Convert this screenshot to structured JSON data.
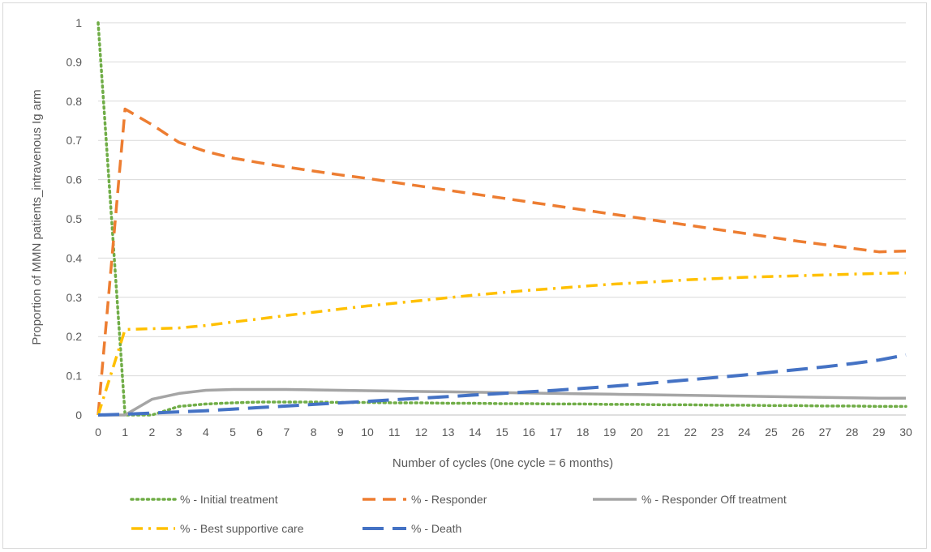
{
  "chart_data": {
    "type": "line",
    "title": "",
    "xlabel": "Number of cycles (0ne cycle = 6 months)",
    "ylabel": "Proportion of MMN patients_intravenous Ig arm",
    "x": [
      0,
      1,
      2,
      3,
      4,
      5,
      6,
      7,
      8,
      9,
      10,
      11,
      12,
      13,
      14,
      15,
      16,
      17,
      18,
      19,
      20,
      21,
      22,
      23,
      24,
      25,
      26,
      27,
      28,
      29,
      30
    ],
    "xlim": [
      0,
      30
    ],
    "ylim": [
      0,
      1
    ],
    "yticks": [
      "0",
      "0.1",
      "0.2",
      "0.3",
      "0.4",
      "0.5",
      "0.6",
      "0.7",
      "0.8",
      "0.9",
      "1"
    ],
    "xticks": [
      "0",
      "1",
      "2",
      "3",
      "4",
      "5",
      "6",
      "7",
      "8",
      "9",
      "10",
      "11",
      "12",
      "13",
      "14",
      "15",
      "16",
      "17",
      "18",
      "19",
      "20",
      "21",
      "22",
      "23",
      "24",
      "25",
      "26",
      "27",
      "28",
      "29",
      "30"
    ],
    "grid": true,
    "legend_position": "bottom",
    "series": [
      {
        "name": "% - Initial treatment",
        "color": "#70ad47",
        "dash": "dotted",
        "values": [
          1.0,
          0.0,
          0.0,
          0.022,
          0.028,
          0.031,
          0.033,
          0.033,
          0.033,
          0.032,
          0.032,
          0.031,
          0.031,
          0.03,
          0.03,
          0.029,
          0.029,
          0.028,
          0.028,
          0.027,
          0.027,
          0.026,
          0.026,
          0.025,
          0.025,
          0.024,
          0.024,
          0.023,
          0.023,
          0.022,
          0.022
        ]
      },
      {
        "name": "% - Responder",
        "color": "#ed7d31",
        "dash": "dashed",
        "values": [
          0.0,
          0.78,
          0.74,
          0.695,
          0.672,
          0.655,
          0.643,
          0.632,
          0.622,
          0.612,
          0.603,
          0.593,
          0.583,
          0.573,
          0.563,
          0.553,
          0.543,
          0.533,
          0.523,
          0.513,
          0.503,
          0.493,
          0.483,
          0.473,
          0.463,
          0.453,
          0.443,
          0.434,
          0.425,
          0.416,
          0.418
        ]
      },
      {
        "name": "% - Responder Off treatment",
        "color": "#a5a5a5",
        "dash": "solid",
        "values": [
          0.0,
          0.0,
          0.04,
          0.055,
          0.063,
          0.065,
          0.065,
          0.065,
          0.064,
          0.063,
          0.062,
          0.061,
          0.06,
          0.059,
          0.058,
          0.057,
          0.056,
          0.055,
          0.054,
          0.053,
          0.052,
          0.051,
          0.05,
          0.049,
          0.048,
          0.047,
          0.046,
          0.045,
          0.044,
          0.043,
          0.043
        ]
      },
      {
        "name": "% - Best supportive care",
        "color": "#ffc000",
        "dash": "dashdot",
        "values": [
          0.0,
          0.218,
          0.22,
          0.222,
          0.228,
          0.237,
          0.245,
          0.254,
          0.262,
          0.27,
          0.278,
          0.285,
          0.292,
          0.299,
          0.306,
          0.312,
          0.318,
          0.323,
          0.328,
          0.333,
          0.337,
          0.341,
          0.345,
          0.348,
          0.351,
          0.353,
          0.355,
          0.357,
          0.359,
          0.361,
          0.362
        ]
      },
      {
        "name": "% - Death",
        "color": "#4472c4",
        "dash": "longdash",
        "values": [
          0.0,
          0.002,
          0.005,
          0.008,
          0.011,
          0.015,
          0.019,
          0.023,
          0.027,
          0.031,
          0.035,
          0.039,
          0.043,
          0.047,
          0.051,
          0.055,
          0.059,
          0.063,
          0.068,
          0.073,
          0.078,
          0.084,
          0.09,
          0.096,
          0.102,
          0.109,
          0.116,
          0.123,
          0.131,
          0.14,
          0.153
        ]
      }
    ]
  }
}
